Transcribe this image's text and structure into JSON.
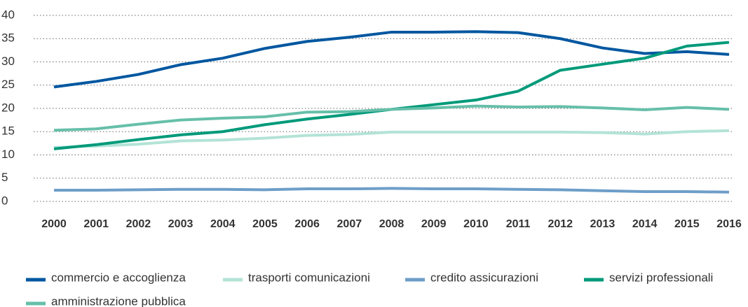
{
  "chart_data": {
    "type": "line",
    "categories": [
      "2000",
      "2001",
      "2002",
      "2003",
      "2004",
      "2005",
      "2006",
      "2007",
      "2008",
      "2009",
      "2010",
      "2011",
      "2012",
      "2013",
      "2014",
      "2015",
      "2016"
    ],
    "series": [
      {
        "name": "commercio e accoglienza",
        "color": "#0057a0",
        "values": [
          24.6,
          25.8,
          27.3,
          29.4,
          30.8,
          32.9,
          34.4,
          35.3,
          36.4,
          36.4,
          36.5,
          36.3,
          35.0,
          33.0,
          31.8,
          32.2,
          31.6
        ]
      },
      {
        "name": "trasporti comunicazioni",
        "color": "#b3e3d6",
        "values": [
          11.6,
          11.9,
          12.3,
          13.0,
          13.2,
          13.6,
          14.2,
          14.4,
          14.9,
          14.9,
          14.9,
          14.9,
          14.9,
          14.8,
          14.5,
          15.0,
          15.2
        ]
      },
      {
        "name": "credito assicurazioni",
        "color": "#6d9ec8",
        "values": [
          2.4,
          2.4,
          2.5,
          2.6,
          2.6,
          2.5,
          2.7,
          2.7,
          2.8,
          2.7,
          2.7,
          2.6,
          2.5,
          2.3,
          2.1,
          2.1,
          2.0
        ]
      },
      {
        "name": "servizi professionali",
        "color": "#009a7a",
        "values": [
          11.3,
          12.2,
          13.3,
          14.3,
          15.0,
          16.5,
          17.7,
          18.7,
          19.8,
          20.8,
          21.8,
          23.7,
          28.2,
          29.5,
          30.8,
          33.4,
          34.2
        ]
      },
      {
        "name": "amministrazione pubblica",
        "color": "#66bfa9",
        "values": [
          15.3,
          15.6,
          16.6,
          17.5,
          17.9,
          18.2,
          19.2,
          19.3,
          19.8,
          20.1,
          20.5,
          20.3,
          20.4,
          20.1,
          19.7,
          20.2,
          19.8
        ]
      }
    ],
    "ylim": [
      0,
      40
    ],
    "yticks": [
      0,
      5,
      10,
      15,
      20,
      25,
      30,
      35,
      40
    ],
    "grid": true,
    "legend": "bottom"
  }
}
